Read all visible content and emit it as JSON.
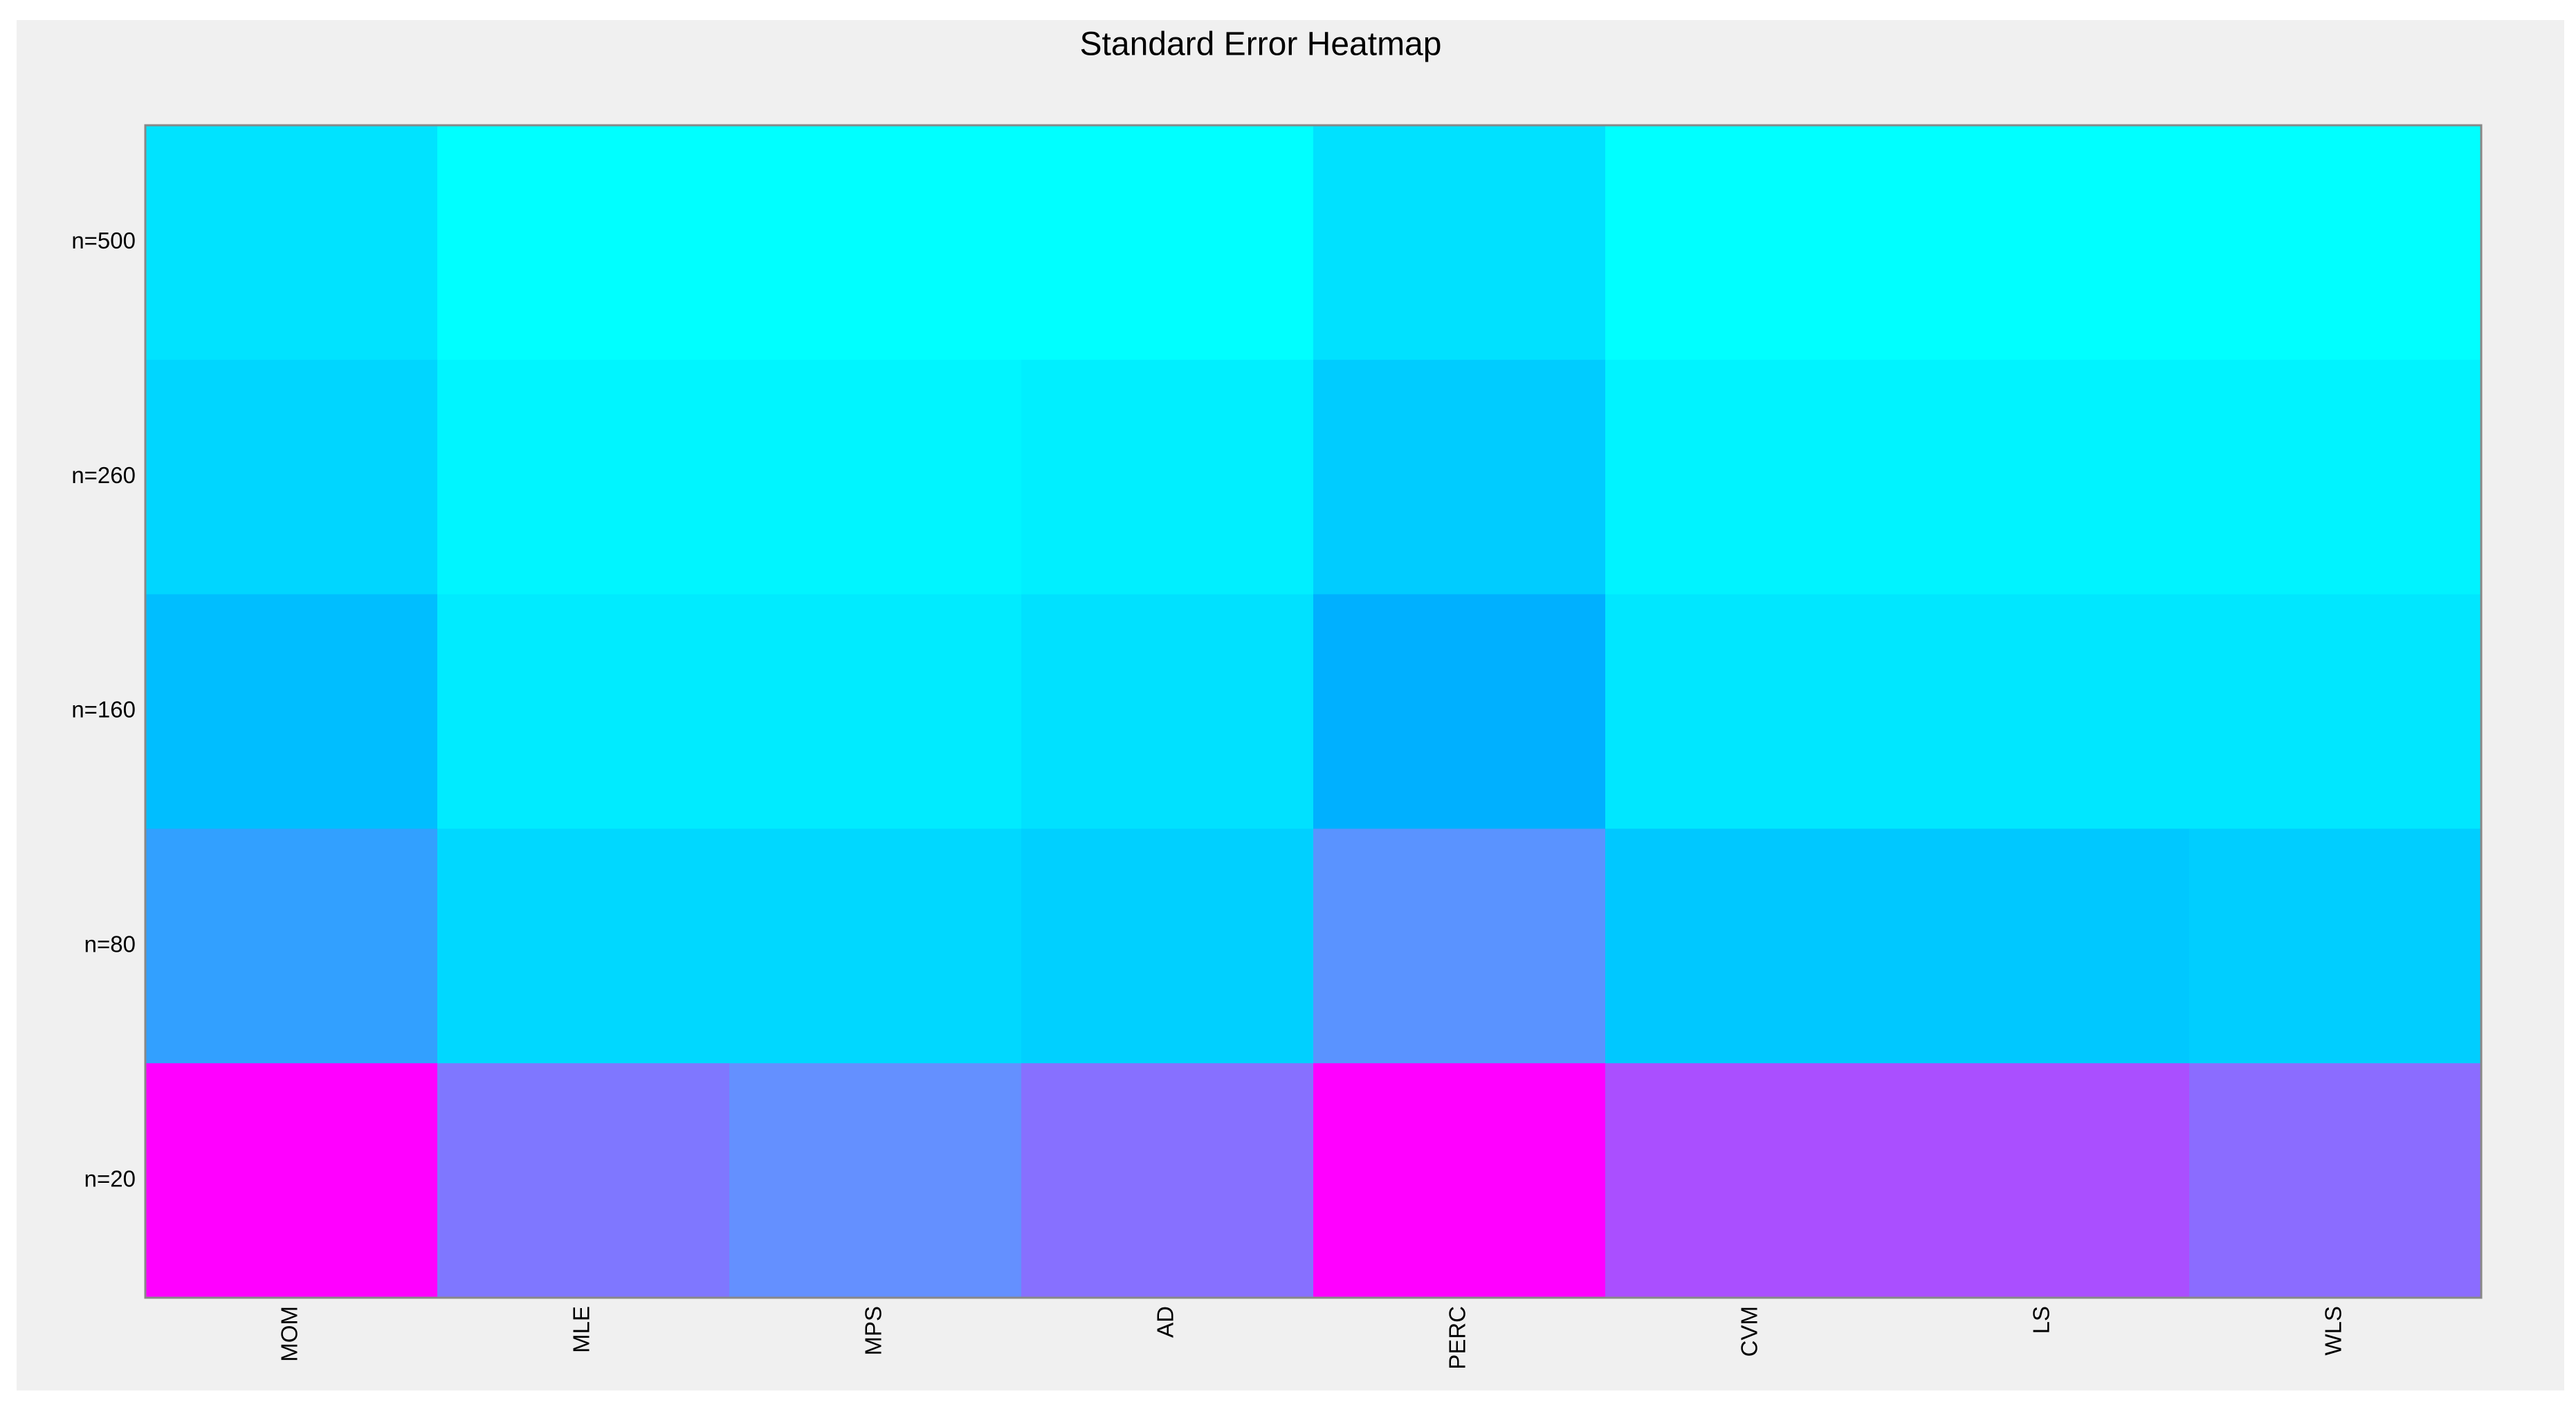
{
  "chart_data": {
    "type": "heatmap",
    "title": "Standard Error Heatmap",
    "x_categories": [
      "MOM",
      "MLE",
      "MPS",
      "AD",
      "PERC",
      "CVM",
      "LS",
      "WLS"
    ],
    "y_categories": [
      "n=500",
      "n=260",
      "n=160",
      "n=80",
      "n=20"
    ],
    "values": [
      [
        0.14,
        0,
        0,
        0,
        0.15,
        0,
        0,
        0
      ],
      [
        0.21,
        0.05,
        0.05,
        0.08,
        0.26,
        0.06,
        0.06,
        0.06
      ],
      [
        0.33,
        0.1,
        0.1,
        0.15,
        0.4,
        0.12,
        0.12,
        0.12
      ],
      [
        0.5,
        0.2,
        0.2,
        0.24,
        0.58,
        0.28,
        0.28,
        0.25
      ],
      [
        1,
        0.67,
        0.6,
        0.69,
        1,
        0.78,
        0.78,
        0.7
      ]
    ],
    "clim": [
      0,
      1
    ],
    "colormap": [
      {
        "value": 0,
        "color": "#00ffff"
      },
      {
        "value": 0.4,
        "color": "#00b0ff"
      },
      {
        "value": 0.6,
        "color": "#6490ff"
      },
      {
        "value": 1,
        "color": "#ff00ff"
      }
    ]
  }
}
